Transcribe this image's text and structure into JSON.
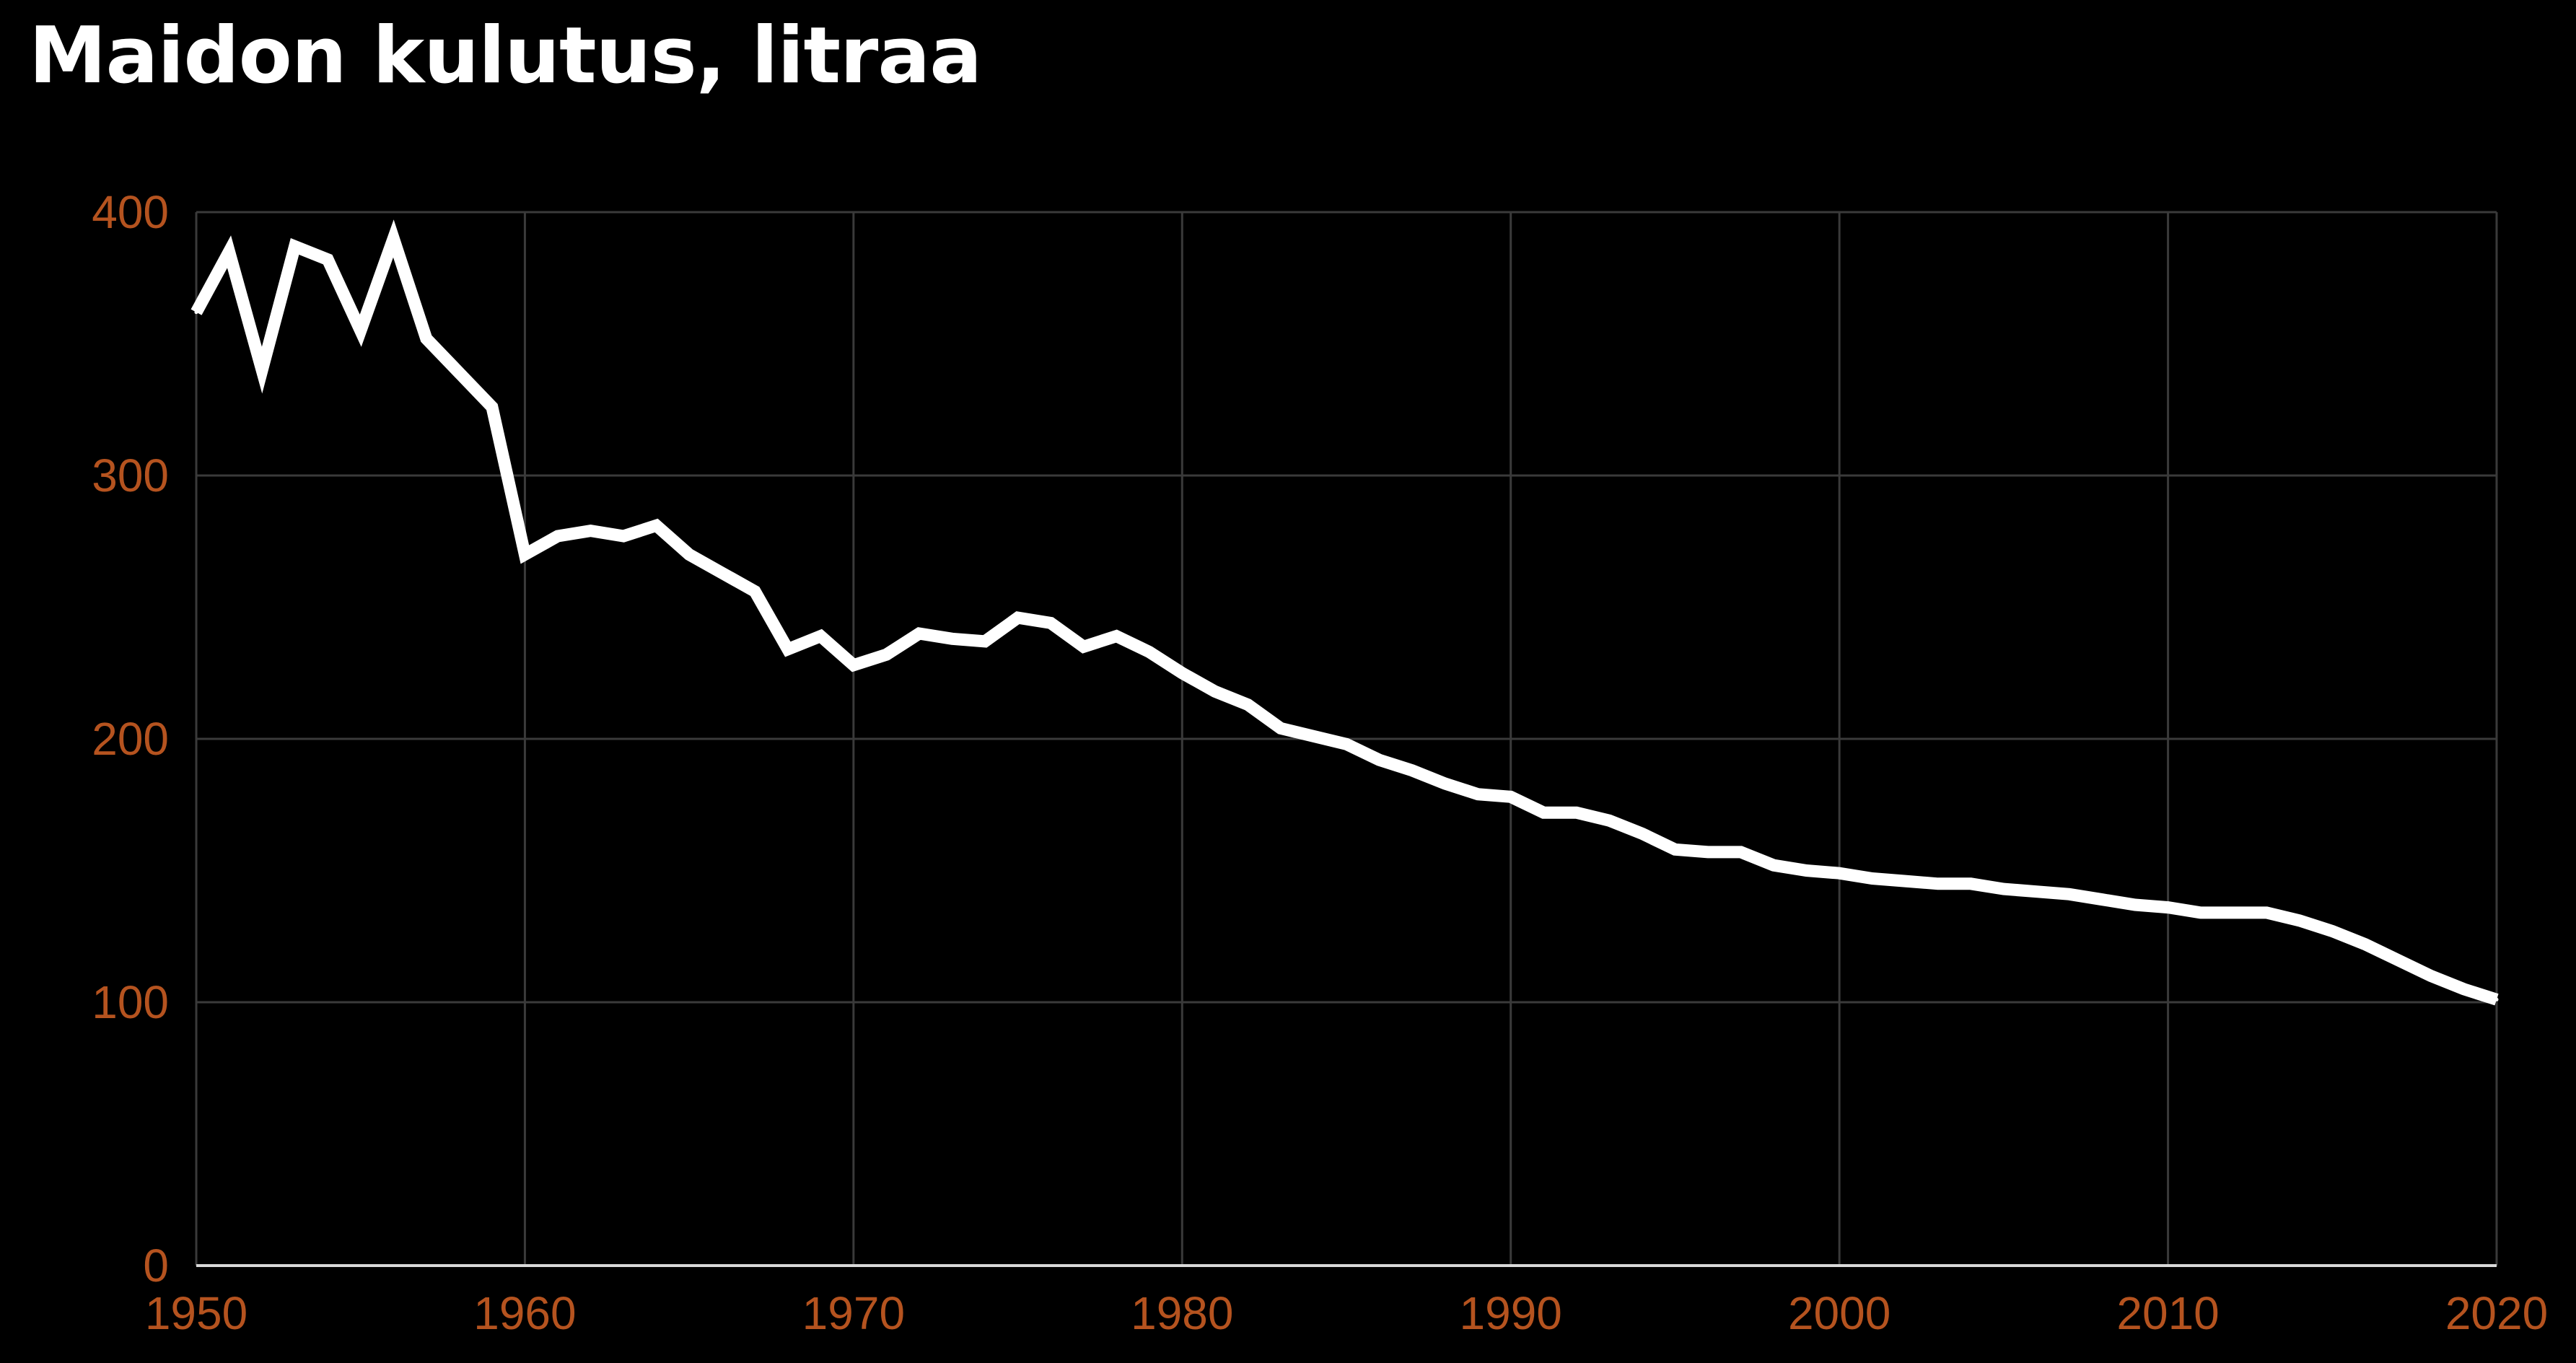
{
  "chart_data": {
    "type": "line",
    "title": "Maidon kulutus, litraa",
    "xlabel": "",
    "ylabel": "",
    "xlim": [
      1950,
      2020
    ],
    "ylim": [
      0,
      400
    ],
    "x_ticks": [
      "1950",
      "1960",
      "1970",
      "1980",
      "1990",
      "2000",
      "2010",
      "2020"
    ],
    "y_ticks": [
      "0",
      "100",
      "200",
      "300",
      "400"
    ],
    "grid": true,
    "legend": "none",
    "colors": {
      "background": "#000000",
      "line": "#ffffff",
      "tick_label": "#b5531f",
      "grid": "#3a3a3a",
      "axis": "#d9d9d9"
    },
    "series": [
      {
        "x": [
          1950,
          1951,
          1952,
          1953,
          1954,
          1955,
          1956,
          1957,
          1958,
          1959,
          1960,
          1961,
          1962,
          1963,
          1964,
          1965,
          1966,
          1967,
          1968,
          1969,
          1970,
          1971,
          1972,
          1973,
          1974,
          1975,
          1976,
          1977,
          1978,
          1979,
          1980,
          1981,
          1982,
          1983,
          1984,
          1985,
          1986,
          1987,
          1988,
          1989,
          1990,
          1991,
          1992,
          1993,
          1994,
          1995,
          1996,
          1997,
          1998,
          1999,
          2000,
          2001,
          2002,
          2003,
          2004,
          2005,
          2006,
          2007,
          2008,
          2009,
          2010,
          2011,
          2012,
          2013,
          2014,
          2015,
          2016,
          2017,
          2018,
          2019,
          2020
        ],
        "values": [
          362,
          385,
          340,
          387,
          382,
          355,
          390,
          352,
          339,
          326,
          270,
          277,
          279,
          277,
          281,
          270,
          263,
          256,
          234,
          239,
          228,
          232,
          240,
          238,
          237,
          246,
          244,
          235,
          239,
          233,
          225,
          218,
          213,
          204,
          201,
          198,
          192,
          188,
          183,
          179,
          178,
          172,
          172,
          169,
          164,
          158,
          157,
          157,
          152,
          150,
          149,
          147,
          146,
          145,
          145,
          143,
          142,
          141,
          139,
          137,
          136,
          134,
          134,
          134,
          131,
          127,
          122,
          116,
          110,
          105,
          101
        ]
      }
    ]
  }
}
